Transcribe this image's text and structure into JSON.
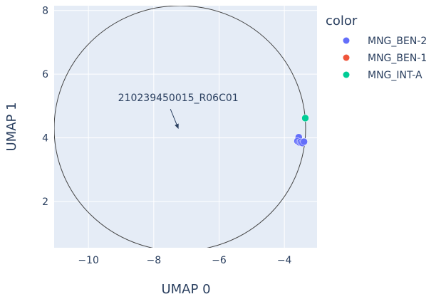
{
  "chart_data": {
    "type": "scatter",
    "xlabel": "UMAP 0",
    "ylabel": "UMAP 1",
    "xlim": [
      -11.05,
      -3.0
    ],
    "ylim": [
      0.55,
      8.15
    ],
    "x_ticks": [
      -10,
      -8,
      -6,
      -4
    ],
    "y_ticks": [
      2,
      4,
      6,
      8
    ],
    "x_tick_labels": [
      "−10",
      "−8",
      "−6",
      "−4"
    ],
    "y_tick_labels": [
      "2",
      "4",
      "6",
      "8"
    ],
    "grid": true,
    "legend": {
      "title": "color",
      "position": "right"
    },
    "series": [
      {
        "name": "MNG_BEN-2",
        "color": "#636efa",
        "points": [
          [
            -3.56,
            4.02
          ],
          [
            -3.6,
            3.9
          ],
          [
            -3.54,
            3.86
          ],
          [
            -3.5,
            3.88
          ],
          [
            -3.45,
            3.84
          ],
          [
            -3.4,
            3.88
          ]
        ]
      },
      {
        "name": "MNG_BEN-1",
        "color": "#ef553b",
        "points": []
      },
      {
        "name": "MNG_INT-A",
        "color": "#00cc96",
        "points": [
          [
            -3.36,
            4.62
          ]
        ]
      }
    ],
    "shapes": [
      {
        "type": "circle",
        "center": [
          -7.2,
          4.3
        ],
        "rx": 3.85,
        "ry": 3.85,
        "color": "#444444"
      }
    ],
    "annotations": [
      {
        "text": "210239450015_R06C01",
        "x": -7.25,
        "y": 4.3,
        "arrow": true
      }
    ]
  }
}
